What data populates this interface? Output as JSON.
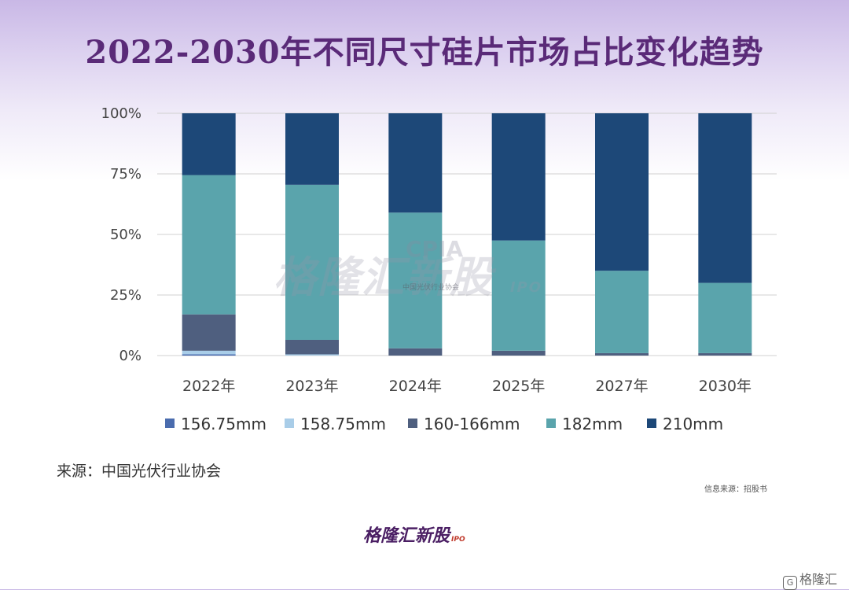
{
  "title": "2022-2030年不同尺寸硅片市场占比变化趋势",
  "source": "来源：中国光伏行业协会",
  "info": "信息来源：招股书",
  "logo": {
    "text": "格隆汇新股",
    "suffix": "IPO"
  },
  "watermark": {
    "text": "格隆汇新股",
    "suffix": "IPO",
    "org": "CPIA",
    "org_name": "中国光伏行业协会"
  },
  "corner": {
    "icon_text": "G",
    "text": "格隆汇"
  },
  "colors": {
    "s156": "#4a6cae",
    "s158": "#a9cde8",
    "s160": "#4f5f7f",
    "s182": "#5aa4ac",
    "s210": "#1d4878",
    "grid": "#d0d0d0",
    "title": "#5a2a78"
  },
  "chart_data": {
    "type": "bar",
    "stacked": true,
    "title": "2022-2030年不同尺寸硅片市场占比变化趋势",
    "categories": [
      "2022年",
      "2023年",
      "2024年",
      "2025年",
      "2027年",
      "2030年"
    ],
    "yticks": [
      "0%",
      "25%",
      "50%",
      "75%",
      "100%"
    ],
    "ylim": [
      0,
      100
    ],
    "legend_position": "bottom",
    "series": [
      {
        "name": "156.75mm",
        "color": "#4a6cae",
        "values": [
          0.5,
          0,
          0,
          0,
          0,
          0
        ]
      },
      {
        "name": "158.75mm",
        "color": "#a9cde8",
        "values": [
          1.5,
          0.5,
          0,
          0,
          0,
          0
        ]
      },
      {
        "name": "160-166mm",
        "color": "#4f5f7f",
        "values": [
          15,
          6,
          3,
          2,
          1,
          1
        ]
      },
      {
        "name": "182mm",
        "color": "#5aa4ac",
        "values": [
          57.5,
          64,
          56,
          45.5,
          34,
          29
        ]
      },
      {
        "name": "210mm",
        "color": "#1d4878",
        "values": [
          25.5,
          29.5,
          41,
          52.5,
          65,
          70
        ]
      }
    ]
  }
}
